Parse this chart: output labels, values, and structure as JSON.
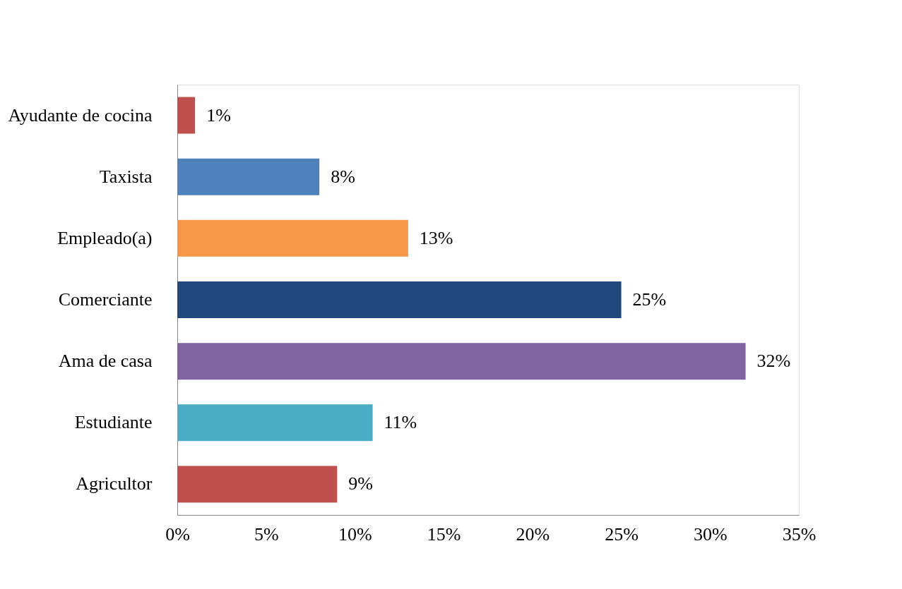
{
  "chart_data": {
    "type": "bar",
    "orientation": "horizontal",
    "categories": [
      "Ayudante de cocina",
      "Taxista",
      "Empleado(a)",
      "Comerciante",
      "Ama de casa",
      "Estudiante",
      "Agricultor"
    ],
    "values": [
      1,
      8,
      13,
      25,
      32,
      11,
      9
    ],
    "colors": [
      "#c0504d",
      "#4f81bd",
      "#f79646",
      "#1f497d",
      "#8064a2",
      "#4bacc6",
      "#c0504d"
    ],
    "value_labels": [
      "1%",
      "8%",
      "13%",
      "25%",
      "32%",
      "11%",
      "9%"
    ],
    "xlim": [
      0,
      35
    ],
    "xticks": [
      {
        "value": 0,
        "label": "0%"
      },
      {
        "value": 5,
        "label": "5%"
      },
      {
        "value": 10,
        "label": "10%"
      },
      {
        "value": 15,
        "label": "15%"
      },
      {
        "value": 20,
        "label": "20%"
      },
      {
        "value": 25,
        "label": "25%"
      },
      {
        "value": 30,
        "label": "30%"
      },
      {
        "value": 35,
        "label": "35%"
      }
    ],
    "grid": false
  }
}
